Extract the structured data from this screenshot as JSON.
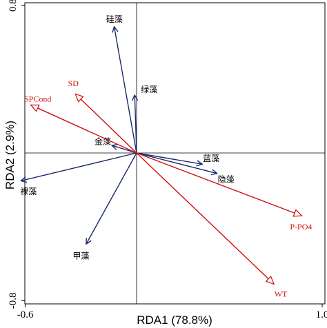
{
  "chart_data": {
    "type": "rda-biplot",
    "xlabel": "RDA1 (78.8%)",
    "ylabel": "RDA2 (2.9%)",
    "xlim": [
      -0.6,
      1.0
    ],
    "ylim": [
      -0.8,
      0.8
    ],
    "x_ticks": [
      {
        "value": -0.6,
        "label": "-0.6"
      },
      {
        "value": 1.0,
        "label": "1.0"
      }
    ],
    "y_ticks": [
      {
        "value": 0.8,
        "label": "0.8"
      },
      {
        "value": -0.8,
        "label": "-0.8"
      }
    ],
    "grid": false,
    "reference_lines": {
      "x": 0,
      "y": 0
    },
    "species": {
      "color": "#1a2a6c",
      "items": [
        {
          "name": "硅藻",
          "x": -0.12,
          "y": 0.68
        },
        {
          "name": "绿藻",
          "x": -0.01,
          "y": 0.31
        },
        {
          "name": "金藻",
          "x": -0.13,
          "y": 0.04
        },
        {
          "name": "蓝藻",
          "x": 0.35,
          "y": -0.06
        },
        {
          "name": "隐藻",
          "x": 0.43,
          "y": -0.11
        },
        {
          "name": "裸藻",
          "x": -0.62,
          "y": -0.15
        },
        {
          "name": "甲藻",
          "x": -0.27,
          "y": -0.49
        }
      ]
    },
    "environment": {
      "color": "#d01010",
      "items": [
        {
          "name": "SD",
          "x": -0.33,
          "y": 0.32
        },
        {
          "name": "SPCond",
          "x": -0.57,
          "y": 0.26
        },
        {
          "name": "P-PO4",
          "x": 0.89,
          "y": -0.34
        },
        {
          "name": "WT",
          "x": 0.74,
          "y": -0.71
        }
      ]
    }
  }
}
